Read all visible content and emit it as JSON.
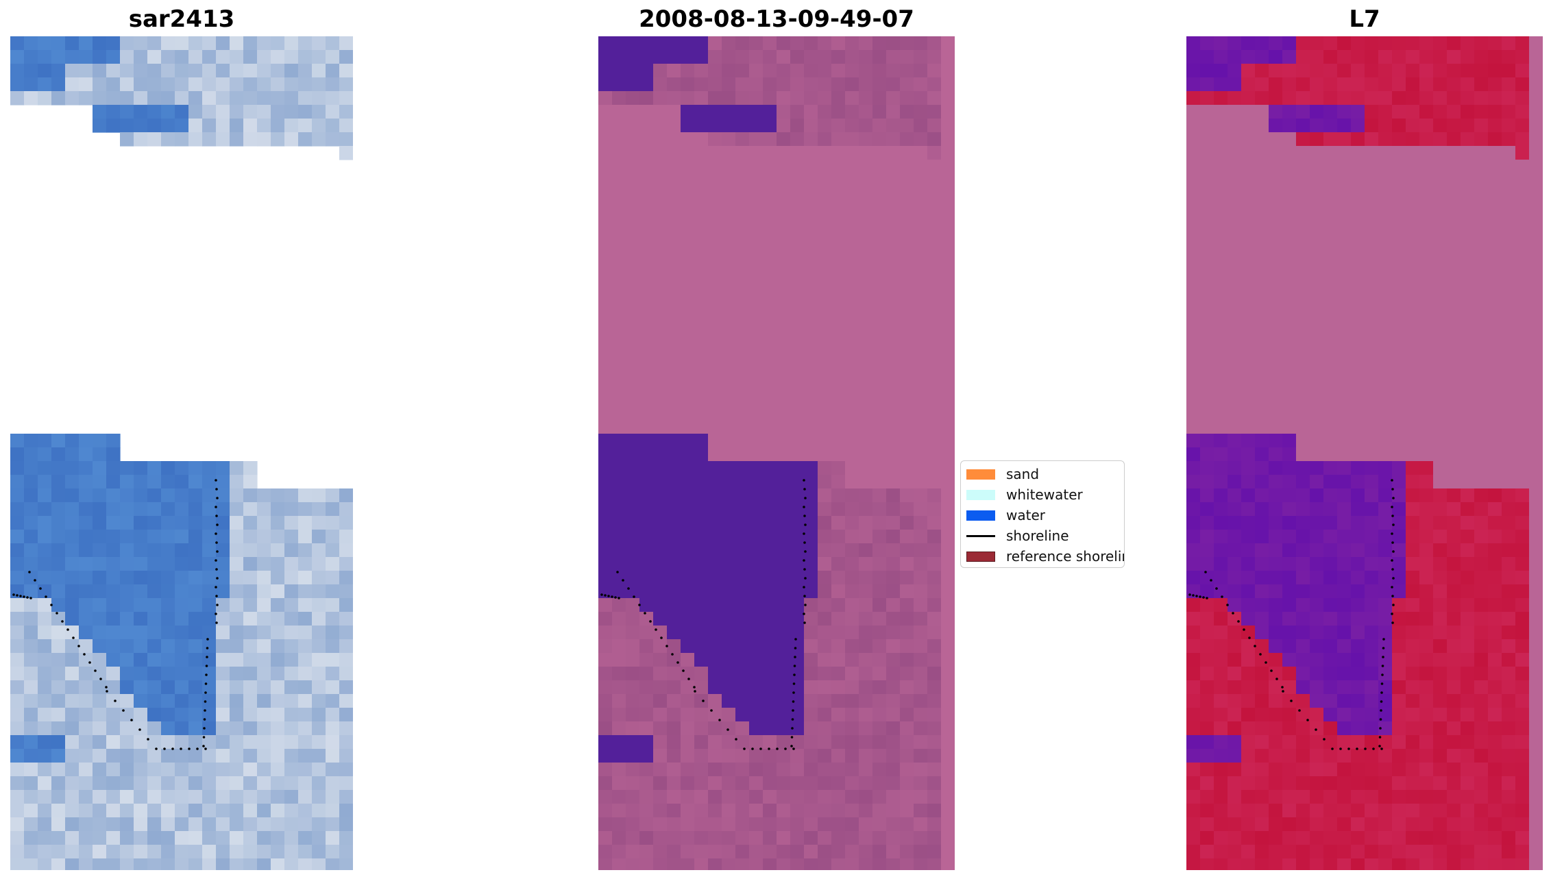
{
  "panels": [
    {
      "title": "sar2413"
    },
    {
      "title": "2008-08-13-09-49-07"
    },
    {
      "title": "L7"
    }
  ],
  "legend": {
    "items": [
      {
        "label": "sand",
        "kind": "patch",
        "color": "#ff8c3a"
      },
      {
        "label": "whitewater",
        "kind": "patch",
        "color": "#ccfcfa"
      },
      {
        "label": "water",
        "kind": "patch",
        "color": "#0b5cf0"
      },
      {
        "label": "shoreline",
        "kind": "line",
        "color": "#000000"
      },
      {
        "label": "reference shoreline buffer",
        "kind": "patch",
        "color": "#9b2a35"
      }
    ]
  },
  "colors": {
    "rgb_water": "#3f73c4",
    "rgb_cloud": "#d7dfeb",
    "classified_background": "#b96596",
    "classified_water": "#53209a",
    "classified_land": "#9b4f86",
    "ndwi_water": "#6612aa",
    "ndwi_land": "#c4143e",
    "ndwi_masked": "#b96596"
  }
}
